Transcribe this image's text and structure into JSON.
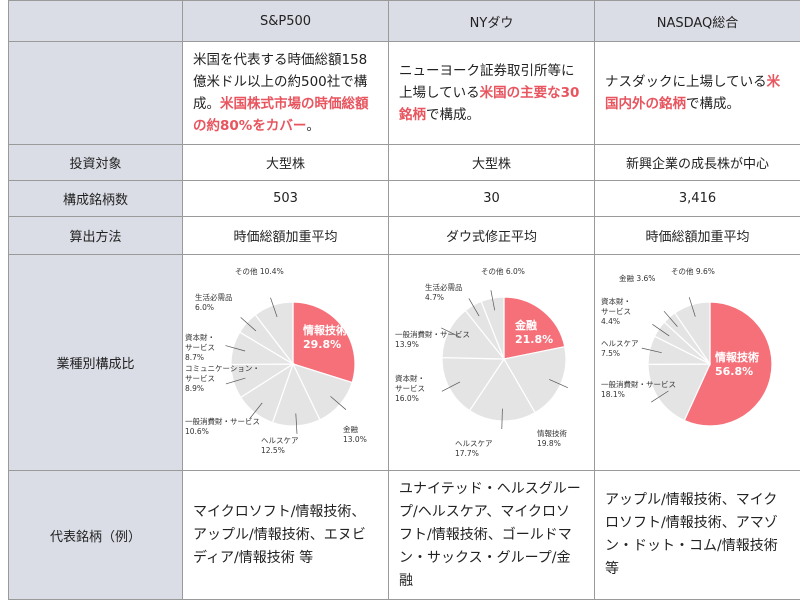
{
  "columns": {
    "corner": "",
    "sp500": "S&P500",
    "nydow": "NYダウ",
    "nasdaq": "NASDAQ総合"
  },
  "descriptions": {
    "sp500": {
      "pre": "米国を代表する時価総額158億米ドル以上の約500社で構成。",
      "hl": "米国株式市場の時価総額の約80%をカバー",
      "post": "。"
    },
    "nydow": {
      "pre": "ニューヨーク証券取引所等に上場している",
      "hl": "米国の主要な30銘柄",
      "post": "で構成。"
    },
    "nasdaq": {
      "pre": "ナスダックに上場している",
      "hl": "米国内外の銘柄",
      "post": "で構成。"
    }
  },
  "rows": {
    "target": {
      "label": "投資対象",
      "sp500": "大型株",
      "nydow": "大型株",
      "nasdaq": "新興企業の成長株が中心"
    },
    "count": {
      "label": "構成銘柄数",
      "sp500": "503",
      "nydow": "30",
      "nasdaq": "3,416"
    },
    "method": {
      "label": "算出方法",
      "sp500": "時価総額加重平均",
      "nydow": "ダウ式修正平均",
      "nasdaq": "時価総額加重平均"
    },
    "sector": {
      "label": "業種別構成比"
    },
    "examples": {
      "label": "代表銘柄（例）",
      "sp500": "マイクロソフト/情報技術、アップル/情報技術、エヌビディア/情報技術 等",
      "nydow": "ユナイテッド・ヘルスグループ/ヘルスケア、マイクロソフト/情報技術、ゴールドマン・サックス・グループ/金融",
      "nasdaq": "アップル/情報技術、マイクロソフト/情報技術、アマゾン・ドット・コム/情報技術 等"
    }
  },
  "chart_data": [
    {
      "type": "pie",
      "name": "S&P500",
      "slices": [
        {
          "label": "情報技術",
          "value": 29.8,
          "highlight": true
        },
        {
          "label": "金融",
          "value": 13.0
        },
        {
          "label": "ヘルスケア",
          "value": 12.5
        },
        {
          "label": "一般消費財・サービス",
          "value": 10.6
        },
        {
          "label": "コミュニケーション・サービス",
          "value": 8.9
        },
        {
          "label": "資本財・サービス",
          "value": 8.7
        },
        {
          "label": "生活必需品",
          "value": 6.0
        },
        {
          "label": "その他",
          "value": 10.4
        }
      ]
    },
    {
      "type": "pie",
      "name": "NYダウ",
      "slices": [
        {
          "label": "金融",
          "value": 21.8,
          "highlight": true
        },
        {
          "label": "情報技術",
          "value": 19.8
        },
        {
          "label": "ヘルスケア",
          "value": 17.7
        },
        {
          "label": "資本財・サービス",
          "value": 16.0
        },
        {
          "label": "一般消費財・サービス",
          "value": 13.9
        },
        {
          "label": "生活必需品",
          "value": 4.7
        },
        {
          "label": "その他",
          "value": 6.0
        }
      ]
    },
    {
      "type": "pie",
      "name": "NASDAQ総合",
      "slices": [
        {
          "label": "情報技術",
          "value": 56.8,
          "highlight": true
        },
        {
          "label": "一般消費財・サービス",
          "value": 18.1
        },
        {
          "label": "ヘルスケア",
          "value": 7.5
        },
        {
          "label": "資本財・サービス",
          "value": 4.4
        },
        {
          "label": "金融",
          "value": 3.6
        },
        {
          "label": "その他",
          "value": 9.6
        }
      ]
    }
  ],
  "colors": {
    "highlight": "#f6707a",
    "slice": "#e4e4e4",
    "stroke": "#ffffff",
    "label": "#333333",
    "header_bg": "#dadde6",
    "accent_text": "#e8555f"
  }
}
